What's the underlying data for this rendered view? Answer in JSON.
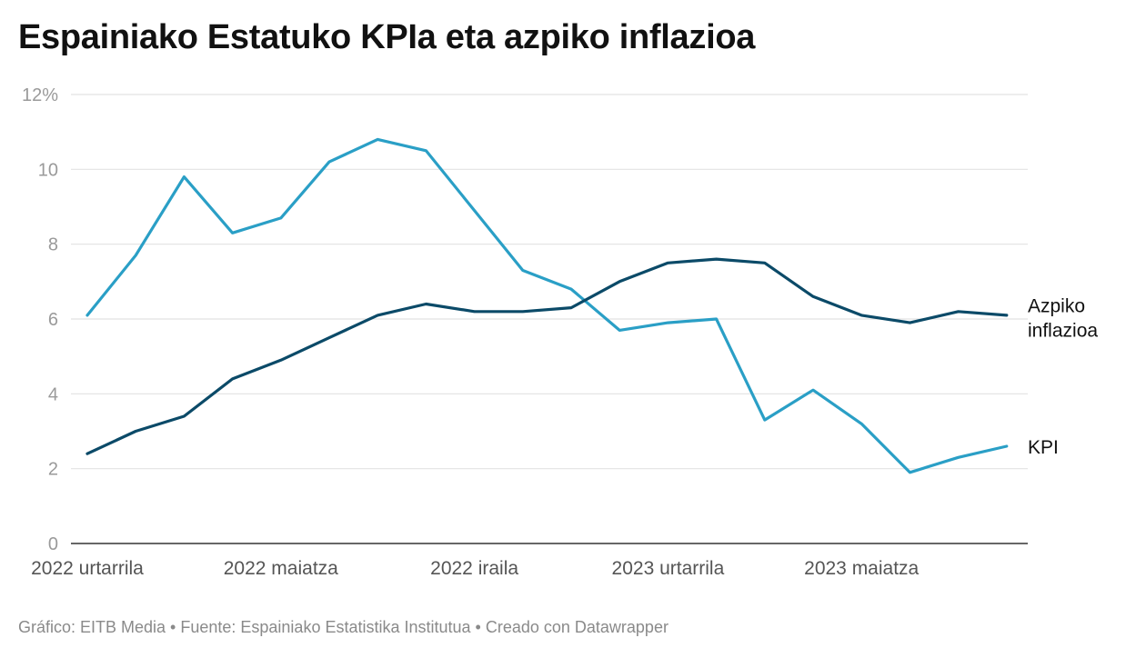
{
  "title": "Espainiako Estatuko KPIa eta azpiko inflazioa",
  "footer": "Gráfico: EITB Media • Fuente: Espainiako Estatistika Institutua • Creado con Datawrapper",
  "chart_data": {
    "type": "line",
    "title": "Espainiako Estatuko KPIa eta azpiko inflazioa",
    "xlabel": "",
    "ylabel": "",
    "ylim": [
      0,
      12
    ],
    "y_ticks": [
      "0",
      "2",
      "4",
      "6",
      "8",
      "10",
      "12%"
    ],
    "x_tick_labels": [
      {
        "index": 0,
        "label": "2022 urtarrila"
      },
      {
        "index": 4,
        "label": "2022 maiatza"
      },
      {
        "index": 8,
        "label": "2022 iraila"
      },
      {
        "index": 12,
        "label": "2023 urtarrila"
      },
      {
        "index": 16,
        "label": "2023 maiatza"
      }
    ],
    "x": [
      "2022-01",
      "2022-02",
      "2022-03",
      "2022-04",
      "2022-05",
      "2022-06",
      "2022-07",
      "2022-08",
      "2022-09",
      "2022-10",
      "2022-11",
      "2022-12",
      "2023-01",
      "2023-02",
      "2023-03",
      "2023-04",
      "2023-05",
      "2023-06",
      "2023-07",
      "2023-08"
    ],
    "grid": true,
    "legend": "direct labels at line ends (right)",
    "series": [
      {
        "name": "KPI",
        "label_lines": [
          "KPI"
        ],
        "color": "#2a9fc6",
        "values": [
          6.1,
          7.7,
          9.8,
          8.3,
          8.7,
          10.2,
          10.8,
          10.5,
          8.9,
          7.3,
          6.8,
          5.7,
          5.9,
          6.0,
          3.3,
          4.1,
          3.2,
          1.9,
          2.3,
          2.6
        ]
      },
      {
        "name": "Azpiko inflazioa",
        "label_lines": [
          "Azpiko",
          "inflazioa"
        ],
        "color": "#0b4a68",
        "values": [
          2.4,
          3.0,
          3.4,
          4.4,
          4.9,
          5.5,
          6.1,
          6.4,
          6.2,
          6.2,
          6.3,
          7.0,
          7.5,
          7.6,
          7.5,
          6.6,
          6.1,
          5.9,
          6.2,
          6.1
        ]
      }
    ]
  }
}
